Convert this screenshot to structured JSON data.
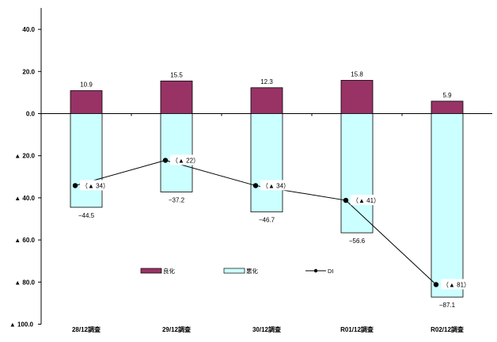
{
  "chart_data": {
    "type": "bar",
    "categories": [
      "28/12調査",
      "29/12調査",
      "30/12調査",
      "R01/12調査",
      "R02/12調査"
    ],
    "series": [
      {
        "name": "良化",
        "kind": "bar",
        "color": "#993366",
        "values": [
          10.9,
          15.5,
          12.3,
          15.8,
          5.9
        ]
      },
      {
        "name": "悪化",
        "kind": "bar",
        "color": "#ccffff",
        "values": [
          -44.5,
          -37.2,
          -46.7,
          -56.6,
          -87.1
        ]
      },
      {
        "name": "DI",
        "kind": "line",
        "color": "#000000",
        "values": [
          -34,
          -22,
          -34,
          -41,
          -81
        ]
      }
    ],
    "good_labels": [
      "10.9",
      "15.5",
      "12.3",
      "15.8",
      "5.9"
    ],
    "bad_labels": [
      "−44.5",
      "−37.2",
      "−46.7",
      "−56.6",
      "−87.1"
    ],
    "di_labels": [
      "（▲ 34）",
      "（▲ 22）",
      "（▲ 34）",
      "（▲ 41）",
      "（▲ 81）"
    ],
    "y_ticks": [
      {
        "value": 40,
        "label": "40.0"
      },
      {
        "value": 20,
        "label": "20.0"
      },
      {
        "value": 0,
        "label": "0.0"
      },
      {
        "value": -20,
        "label": "▲ 20.0"
      },
      {
        "value": -40,
        "label": "▲ 40.0"
      },
      {
        "value": -60,
        "label": "▲ 60.0"
      },
      {
        "value": -80,
        "label": "▲ 80.0"
      },
      {
        "value": -100,
        "label": "▲ 100.0"
      }
    ],
    "ylim": [
      -100,
      50
    ],
    "grid": false,
    "legend_position": "inside-bottom",
    "legend": [
      {
        "label": "良化",
        "kind": "bar",
        "color": "#993366"
      },
      {
        "label": "悪化",
        "kind": "bar",
        "color": "#ccffff"
      },
      {
        "label": "DI",
        "kind": "line",
        "color": "#000000"
      }
    ]
  }
}
